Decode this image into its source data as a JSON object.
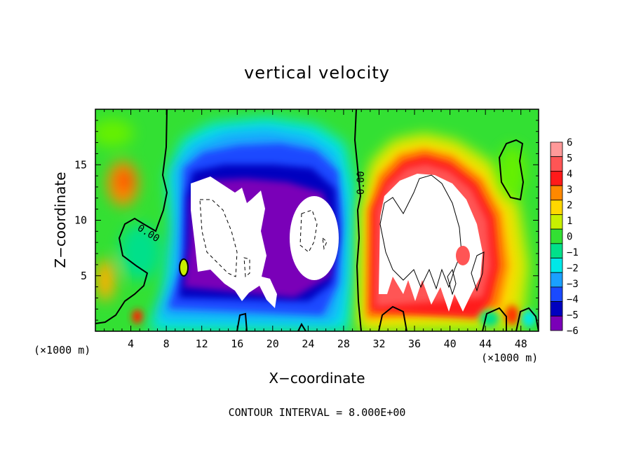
{
  "chart_data": {
    "type": "heatmap",
    "title": "vertical velocity",
    "xlabel": "X−coordinate",
    "ylabel": "Z−coordinate",
    "x_unit_left": "(×1000 m)",
    "x_unit_right": "(×1000 m)",
    "xlim": [
      0,
      50
    ],
    "ylim": [
      0,
      20
    ],
    "xticks": [
      "4",
      "8",
      "12",
      "16",
      "20",
      "24",
      "28",
      "32",
      "36",
      "40",
      "44",
      "48"
    ],
    "yticks": [
      "5",
      "10",
      "15"
    ],
    "colorbar": {
      "levels": [
        "6",
        "5",
        "4",
        "3",
        "2",
        "1",
        "0",
        "−1",
        "−2",
        "−3",
        "−4",
        "−5",
        "−6"
      ],
      "colors": [
        "#ff9999",
        "#ff5555",
        "#ff1a1a",
        "#ff8800",
        "#ffd700",
        "#c8f000",
        "#33e033",
        "#00e08a",
        "#00e8e8",
        "#1aa0ff",
        "#1a4aff",
        "#0000c0",
        "#7a00b8"
      ]
    },
    "contour_labels": [
      "0.00",
      "0.00"
    ],
    "contour_interval_text": "CONTOUR INTERVAL = 8.000E+00",
    "features": [
      {
        "kind": "downdraft",
        "x": 15,
        "z": 9.5,
        "rx": 4.5,
        "rz": 6.5,
        "strength": -6
      },
      {
        "kind": "downdraft",
        "x": 19,
        "z": 8.5,
        "rx": 3,
        "rz": 6,
        "strength": -5
      },
      {
        "kind": "downdraft",
        "x": 25,
        "z": 8.5,
        "rx": 3,
        "rz": 4.5,
        "strength": -6
      },
      {
        "kind": "updraft",
        "x": 37,
        "z": 9.5,
        "rx": 5.5,
        "rz": 7.5,
        "strength": 6
      },
      {
        "kind": "updraft",
        "x": 4,
        "z": 13,
        "rx": 1.5,
        "rz": 2,
        "strength": 3
      },
      {
        "kind": "updraft",
        "x": 4.5,
        "z": 1.5,
        "rx": 1,
        "rz": 1,
        "strength": 4
      }
    ]
  }
}
